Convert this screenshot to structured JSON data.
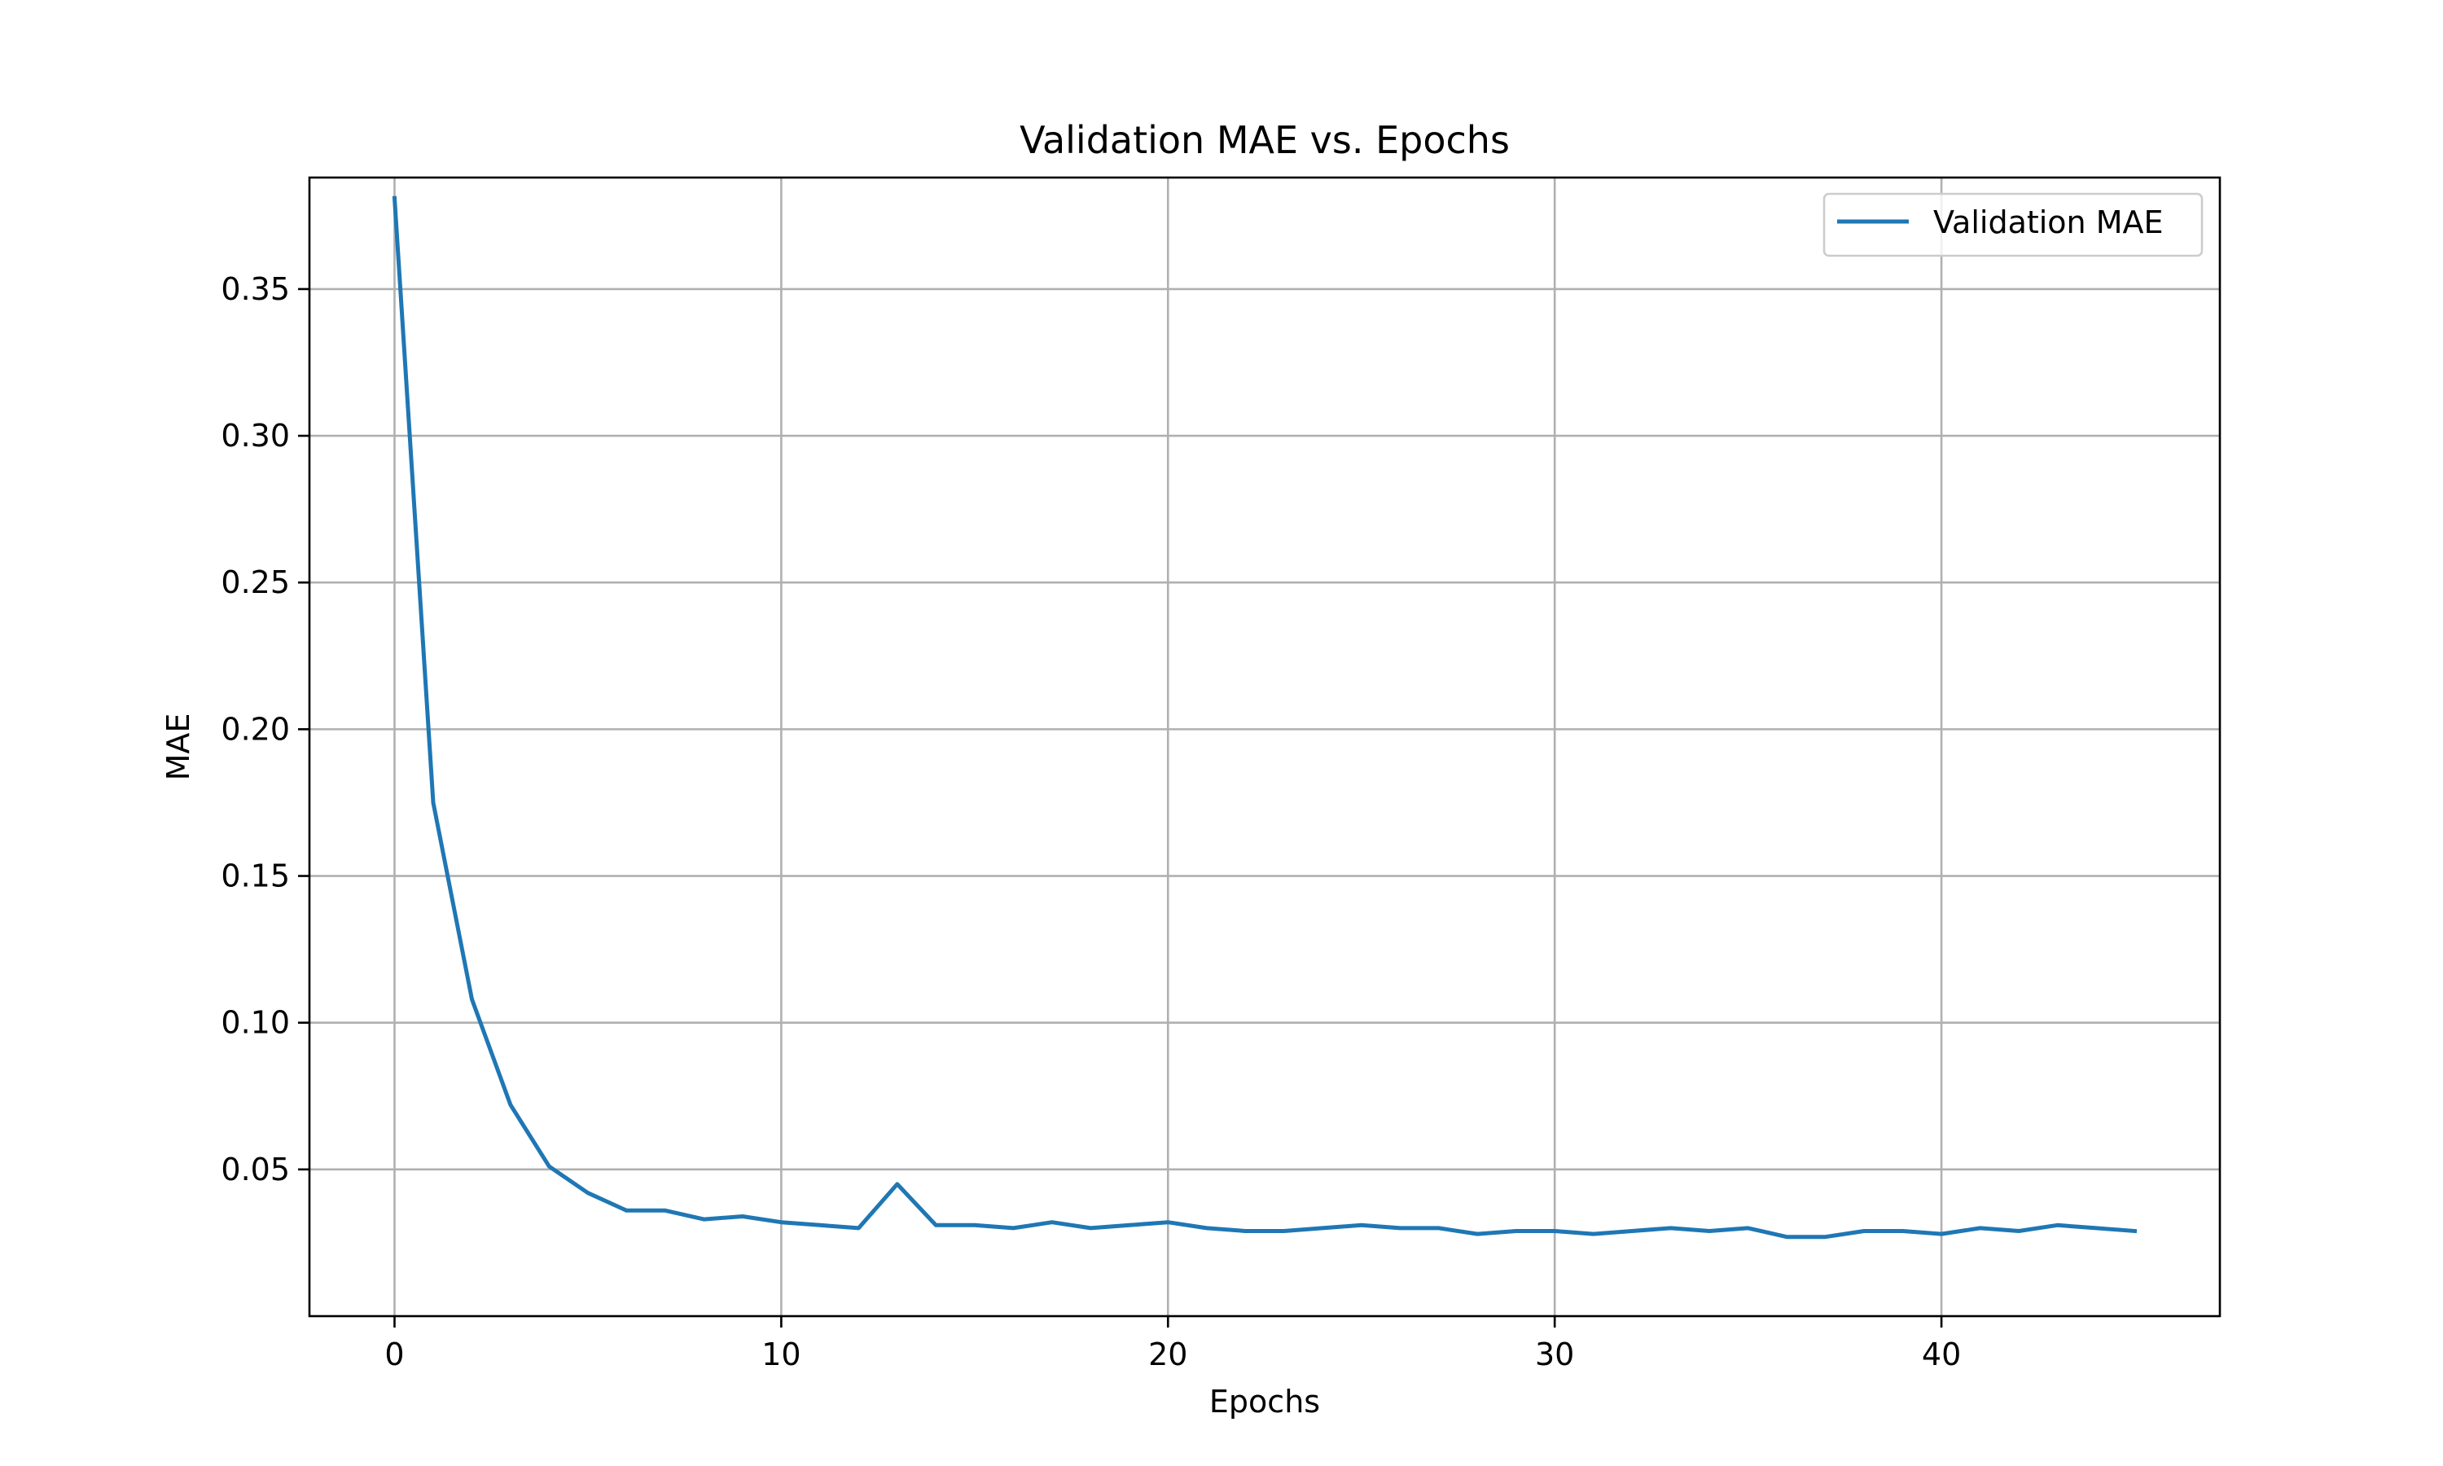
{
  "chart_data": {
    "type": "line",
    "title": "Validation MAE vs. Epochs",
    "xlabel": "Epochs",
    "ylabel": "MAE",
    "xlim": [
      -2.2,
      47.2
    ],
    "ylim": [
      0.0,
      0.388
    ],
    "xticks": [
      0,
      10,
      20,
      30,
      40
    ],
    "xtick_labels": [
      "0",
      "10",
      "20",
      "30",
      "40"
    ],
    "yticks": [
      0.05,
      0.1,
      0.15,
      0.2,
      0.25,
      0.3,
      0.35
    ],
    "ytick_labels": [
      "0.05",
      "0.10",
      "0.15",
      "0.20",
      "0.25",
      "0.30",
      "0.35"
    ],
    "grid": true,
    "legend_position": "top-right",
    "series": [
      {
        "name": "Validation MAE",
        "color": "#1f77b4",
        "x": [
          0,
          1,
          2,
          3,
          4,
          5,
          6,
          7,
          8,
          9,
          10,
          11,
          12,
          13,
          14,
          15,
          16,
          17,
          18,
          19,
          20,
          21,
          22,
          23,
          24,
          25,
          26,
          27,
          28,
          29,
          30,
          31,
          32,
          33,
          34,
          35,
          36,
          37,
          38,
          39,
          40,
          41,
          42,
          43,
          44,
          45
        ],
        "y": [
          0.381,
          0.175,
          0.108,
          0.072,
          0.051,
          0.042,
          0.036,
          0.036,
          0.033,
          0.034,
          0.032,
          0.031,
          0.03,
          0.045,
          0.031,
          0.031,
          0.03,
          0.032,
          0.03,
          0.031,
          0.032,
          0.03,
          0.029,
          0.029,
          0.03,
          0.031,
          0.03,
          0.03,
          0.028,
          0.029,
          0.029,
          0.028,
          0.029,
          0.03,
          0.029,
          0.03,
          0.027,
          0.027,
          0.029,
          0.029,
          0.028,
          0.03,
          0.029,
          0.031,
          0.03,
          0.029
        ]
      }
    ]
  }
}
